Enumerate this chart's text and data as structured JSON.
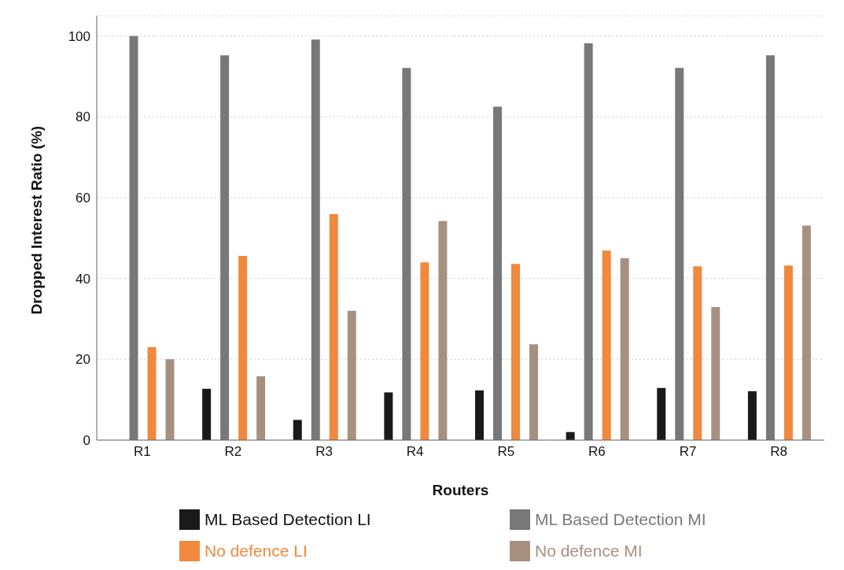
{
  "chart_data": {
    "type": "bar",
    "xlabel": "Routers",
    "ylabel": "Dropped Interest Ratio (%)",
    "categories": [
      "R1",
      "R2",
      "R3",
      "R4",
      "R5",
      "R6",
      "R7",
      "R8"
    ],
    "series": [
      {
        "name": "ML Based Detection LI",
        "color": "#1a1a1a",
        "values": [
          0,
          12.7,
          5,
          11.8,
          12.3,
          2,
          12.9,
          12.1
        ]
      },
      {
        "name": "ML Based Detection MI",
        "color": "#787878",
        "values": [
          100,
          95.2,
          99.1,
          92.1,
          82.5,
          98.2,
          92.1,
          95.2
        ]
      },
      {
        "name": "No defence LI",
        "color": "#f0883e",
        "values": [
          23,
          45.6,
          55.9,
          44,
          43.6,
          46.9,
          43,
          43.2
        ]
      },
      {
        "name": "No defence MI",
        "color": "#a89080",
        "values": [
          20,
          15.8,
          32,
          54.2,
          23.7,
          45,
          32.9,
          53.1
        ]
      }
    ],
    "ylim": [
      0,
      105
    ],
    "yticks": [
      0,
      20,
      40,
      60,
      80,
      100
    ],
    "grid": "y",
    "legend": "bottom"
  }
}
